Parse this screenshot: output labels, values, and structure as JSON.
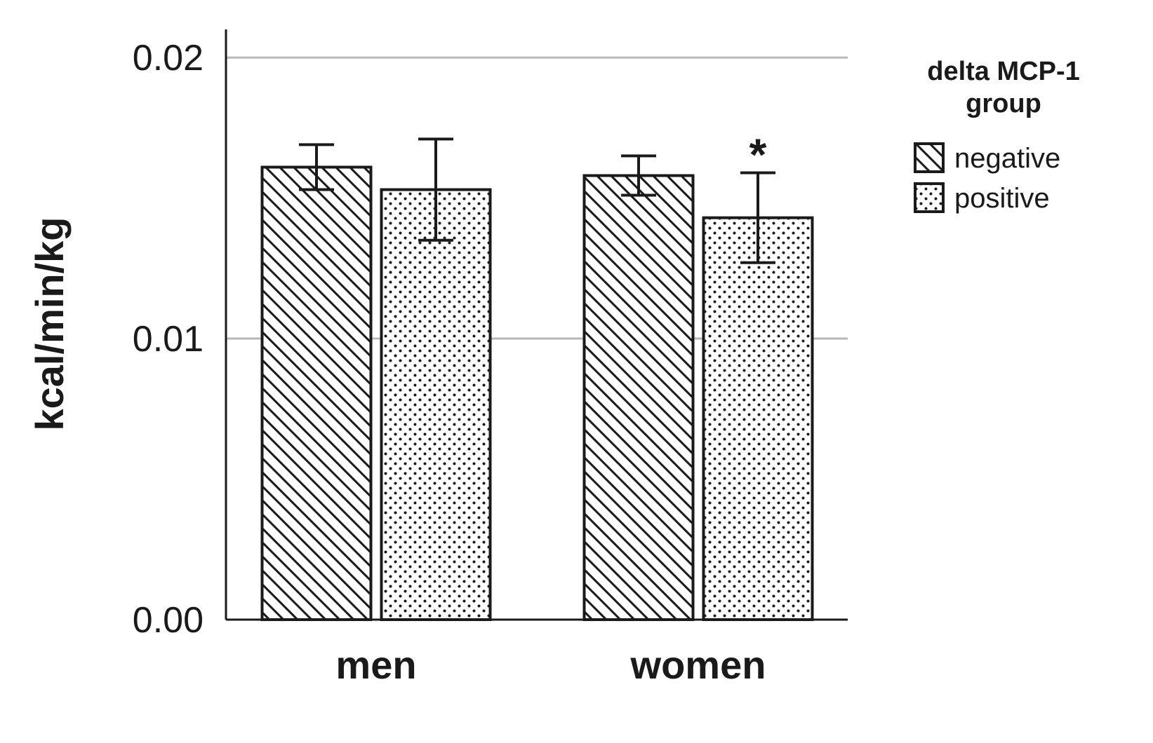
{
  "chart_data": {
    "type": "bar",
    "title": "",
    "xlabel": "",
    "ylabel": "kcal/min/kg",
    "ylim": [
      0,
      0.021
    ],
    "yticks": [
      {
        "value": 0.0,
        "label": "0.00"
      },
      {
        "value": 0.01,
        "label": "0.01"
      },
      {
        "value": 0.02,
        "label": "0.02"
      }
    ],
    "grid": "horizontal",
    "categories": [
      "men",
      "women"
    ],
    "legend": {
      "title_lines": [
        "delta MCP-1",
        "group"
      ],
      "placement": "right"
    },
    "series": [
      {
        "name": "negative",
        "pattern": "diagonal-hatch",
        "values": [
          0.0161,
          0.0158
        ],
        "error": [
          [
            0.0153,
            0.0169
          ],
          [
            0.0151,
            0.0165
          ]
        ]
      },
      {
        "name": "positive",
        "pattern": "dots",
        "values": [
          0.0153,
          0.0143
        ],
        "error": [
          [
            0.0135,
            0.0171
          ],
          [
            0.0127,
            0.0159
          ]
        ]
      }
    ],
    "annotations": [
      {
        "text": "*",
        "category": "women",
        "series": "positive"
      }
    ]
  }
}
